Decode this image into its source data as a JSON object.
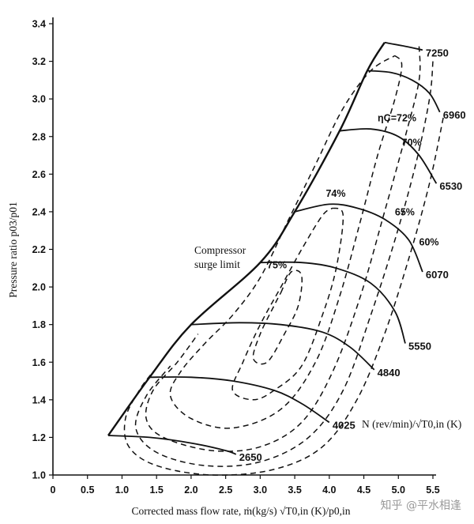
{
  "chart_data": {
    "type": "line",
    "xlabel": "Corrected mass flow rate, ṁ(kg/s) √T0,in (K)/p0,in",
    "ylabel": "Pressure ratio p03/p01",
    "xlim": [
      0,
      5.5
    ],
    "ylim": [
      1.0,
      3.4
    ],
    "x_ticks": [
      "0",
      "0.5",
      "1.0",
      "1.5",
      "2.0",
      "2.5",
      "3.0",
      "3.5",
      "4.0",
      "4.5",
      "5.0",
      "5.5"
    ],
    "y_ticks": [
      "1.0",
      "1.2",
      "1.4",
      "1.6",
      "1.8",
      "2.0",
      "2.2",
      "2.4",
      "2.6",
      "2.8",
      "3.0",
      "3.2",
      "3.4"
    ],
    "grid": false,
    "surge_line": {
      "label_line1": "Compressor",
      "label_line2": "surge limit",
      "points": [
        [
          0.8,
          1.21
        ],
        [
          1.4,
          1.52
        ],
        [
          2.0,
          1.8
        ],
        [
          3.0,
          2.13
        ],
        [
          3.5,
          2.4
        ],
        [
          4.15,
          2.83
        ],
        [
          4.55,
          3.15
        ],
        [
          4.8,
          3.3
        ]
      ]
    },
    "speed_legend": "N (rev/min)/√T0,in (K)",
    "speed_lines": [
      {
        "label": "2650",
        "points": [
          [
            0.8,
            1.21
          ],
          [
            1.4,
            1.2
          ],
          [
            2.0,
            1.17
          ],
          [
            2.5,
            1.13
          ],
          [
            2.65,
            1.11
          ]
        ]
      },
      {
        "label": "4025",
        "points": [
          [
            1.4,
            1.52
          ],
          [
            2.0,
            1.52
          ],
          [
            2.6,
            1.5
          ],
          [
            3.2,
            1.45
          ],
          [
            3.6,
            1.38
          ],
          [
            4.0,
            1.28
          ]
        ]
      },
      {
        "label": "4840",
        "points": [
          [
            2.0,
            1.8
          ],
          [
            2.7,
            1.81
          ],
          [
            3.3,
            1.8
          ],
          [
            3.9,
            1.76
          ],
          [
            4.3,
            1.68
          ],
          [
            4.65,
            1.56
          ]
        ]
      },
      {
        "label": "5550",
        "points": [
          [
            3.0,
            2.13
          ],
          [
            3.6,
            2.13
          ],
          [
            4.1,
            2.1
          ],
          [
            4.6,
            2.02
          ],
          [
            4.95,
            1.87
          ],
          [
            5.1,
            1.7
          ]
        ]
      },
      {
        "label": "6070",
        "points": [
          [
            3.5,
            2.4
          ],
          [
            4.0,
            2.44
          ],
          [
            4.4,
            2.42
          ],
          [
            4.8,
            2.36
          ],
          [
            5.15,
            2.25
          ],
          [
            5.35,
            2.08
          ]
        ]
      },
      {
        "label": "6530",
        "points": [
          [
            4.15,
            2.83
          ],
          [
            4.6,
            2.84
          ],
          [
            5.0,
            2.8
          ],
          [
            5.3,
            2.7
          ],
          [
            5.55,
            2.55
          ]
        ]
      },
      {
        "label": "6960",
        "points": [
          [
            4.55,
            3.15
          ],
          [
            4.9,
            3.14
          ],
          [
            5.2,
            3.1
          ],
          [
            5.45,
            3.03
          ],
          [
            5.6,
            2.93
          ]
        ]
      },
      {
        "label": "7250",
        "points": [
          [
            4.8,
            3.3
          ],
          [
            5.1,
            3.28
          ],
          [
            5.35,
            3.26
          ]
        ]
      }
    ],
    "efficiency_contours": [
      {
        "label": "75%",
        "points": [
          [
            3.3,
            1.97
          ],
          [
            3.45,
            2.08
          ],
          [
            3.6,
            2.06
          ],
          [
            3.55,
            1.9
          ],
          [
            3.35,
            1.75
          ],
          [
            3.1,
            1.6
          ],
          [
            2.9,
            1.62
          ],
          [
            3.0,
            1.75
          ],
          [
            3.2,
            1.9
          ],
          [
            3.3,
            1.97
          ]
        ]
      },
      {
        "label": "74%",
        "points": [
          [
            4.05,
            2.42
          ],
          [
            4.2,
            2.38
          ],
          [
            4.1,
            2.1
          ],
          [
            3.9,
            1.85
          ],
          [
            3.6,
            1.58
          ],
          [
            3.2,
            1.45
          ],
          [
            2.9,
            1.4
          ],
          [
            2.6,
            1.45
          ],
          [
            2.75,
            1.6
          ],
          [
            3.0,
            1.8
          ],
          [
            3.3,
            2.0
          ],
          [
            3.6,
            2.2
          ],
          [
            3.9,
            2.38
          ],
          [
            4.05,
            2.42
          ]
        ]
      },
      {
        "label": "ηC=72%",
        "points": [
          [
            4.95,
            3.23
          ],
          [
            5.05,
            3.18
          ],
          [
            4.95,
            3.0
          ],
          [
            4.7,
            2.7
          ],
          [
            4.45,
            2.35
          ],
          [
            4.15,
            1.95
          ],
          [
            3.8,
            1.6
          ],
          [
            3.3,
            1.35
          ],
          [
            2.6,
            1.25
          ],
          [
            2.0,
            1.3
          ],
          [
            1.7,
            1.42
          ],
          [
            1.85,
            1.55
          ],
          [
            2.2,
            1.7
          ],
          [
            2.6,
            1.85
          ],
          [
            3.0,
            2.05
          ],
          [
            3.4,
            2.35
          ],
          [
            3.8,
            2.65
          ],
          [
            4.2,
            2.95
          ],
          [
            4.6,
            3.15
          ],
          [
            4.95,
            3.23
          ]
        ]
      },
      {
        "label": "70%",
        "points": [
          [
            5.3,
            3.28
          ],
          [
            5.3,
            3.1
          ],
          [
            5.1,
            2.8
          ],
          [
            4.8,
            2.4
          ],
          [
            4.45,
            1.95
          ],
          [
            4.05,
            1.55
          ],
          [
            3.6,
            1.28
          ],
          [
            3.0,
            1.15
          ],
          [
            2.3,
            1.13
          ],
          [
            1.6,
            1.2
          ],
          [
            1.35,
            1.3
          ],
          [
            1.45,
            1.45
          ],
          [
            1.8,
            1.6
          ],
          [
            2.1,
            1.75
          ]
        ]
      },
      {
        "label": "65%",
        "points": [
          [
            5.5,
            3.2
          ],
          [
            5.45,
            3.0
          ],
          [
            5.25,
            2.65
          ],
          [
            4.95,
            2.25
          ],
          [
            4.6,
            1.85
          ],
          [
            4.2,
            1.45
          ],
          [
            3.7,
            1.2
          ],
          [
            3.0,
            1.07
          ],
          [
            2.2,
            1.05
          ],
          [
            1.5,
            1.12
          ],
          [
            1.2,
            1.25
          ],
          [
            1.35,
            1.42
          ],
          [
            1.7,
            1.58
          ]
        ]
      },
      {
        "label": "60%",
        "points": [
          [
            5.65,
            2.9
          ],
          [
            5.45,
            2.55
          ],
          [
            5.15,
            2.15
          ],
          [
            4.8,
            1.75
          ],
          [
            4.4,
            1.4
          ],
          [
            3.9,
            1.15
          ],
          [
            3.2,
            1.03
          ],
          [
            2.3,
            1.0
          ],
          [
            1.5,
            1.05
          ],
          [
            1.1,
            1.15
          ],
          [
            1.05,
            1.3
          ],
          [
            1.25,
            1.45
          ],
          [
            1.45,
            1.55
          ]
        ]
      }
    ],
    "efficiency_label_pos": [
      {
        "label": "75%",
        "x": 3.1,
        "y": 2.1
      },
      {
        "label": "74%",
        "x": 3.95,
        "y": 2.48
      },
      {
        "label": "ηC=72%",
        "x": 4.7,
        "y": 2.88
      },
      {
        "label": "70%",
        "x": 5.05,
        "y": 2.75
      },
      {
        "label": "65%",
        "x": 4.95,
        "y": 2.38
      },
      {
        "label": "60%",
        "x": 5.3,
        "y": 2.22
      }
    ],
    "watermark": "知乎 @平水相逢"
  }
}
